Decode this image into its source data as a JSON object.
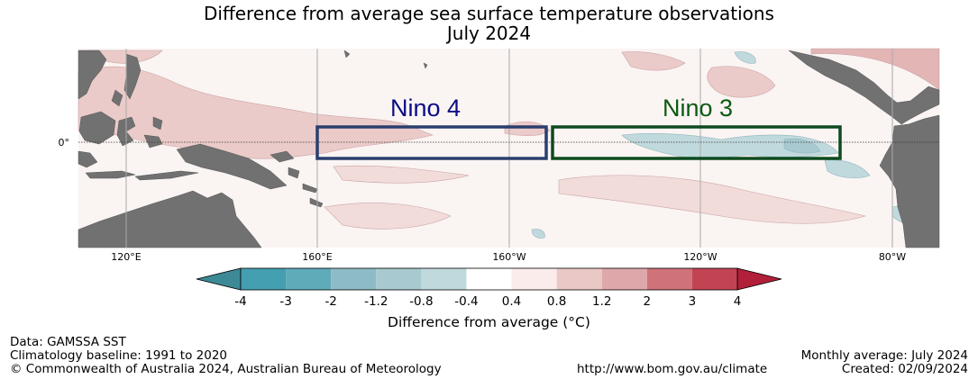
{
  "title": {
    "line1": "Difference from average sea surface temperature observations",
    "line2": "July 2024"
  },
  "map": {
    "equator_label": "0°",
    "longitude_labels": [
      "120°E",
      "160°E",
      "160°W",
      "120°W",
      "80°W"
    ],
    "regions": [
      {
        "name": "Nino 4",
        "color": "#2a3f6e",
        "label_color": "#0c0c84"
      },
      {
        "name": "Nino 3",
        "color": "#0d4a1e",
        "label_color": "#0b5a12"
      }
    ],
    "land_color": "#717171"
  },
  "colorbar": {
    "labels": [
      "-4",
      "-3",
      "-2",
      "-1.2",
      "-0.8",
      "-0.4",
      "0.4",
      "0.8",
      "1.2",
      "2",
      "3",
      "4"
    ],
    "colors": [
      "#449fb0",
      "#5fabba",
      "#8ebcc6",
      "#a7c9cf",
      "#c0d9dc",
      "#ffffff",
      "#f9eceb",
      "#eac8c6",
      "#dea8aa",
      "#cf7279",
      "#c24452"
    ],
    "under_color": "#3d8a96",
    "over_color": "#b11f38",
    "title": "Difference from average (°C)"
  },
  "footer": {
    "data": "Data: GAMSSA SST",
    "baseline": "Climatology baseline: 1991 to 2020",
    "copyright": "© Commonwealth of Australia 2024, Australian Bureau of Meteorology",
    "url": "http://www.bom.gov.au/climate",
    "monthly": "Monthly average: July 2024",
    "created": "Created: 02/09/2024"
  }
}
